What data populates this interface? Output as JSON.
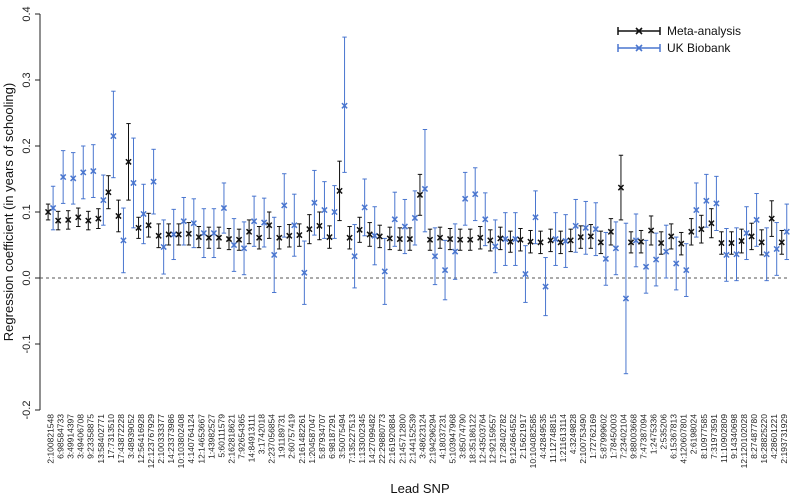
{
  "chart_data": {
    "type": "scatter",
    "title": "",
    "xlabel": "Lead SNP",
    "ylabel": "Regression coefficient (in years of schooling)",
    "ylim": [
      -0.2,
      0.4
    ],
    "yticks": [
      "-0.2",
      "-0.1",
      "0.0",
      "0.1",
      "0.2",
      "0.3",
      "0.4"
    ],
    "reference_line": 0,
    "grid": false,
    "legend_position": "top-right",
    "categories": [
      "2:100821548",
      "6:98584733",
      "3:49914397",
      "3:49406708",
      "9:23358875",
      "13:58402771",
      "17:7313510",
      "17:43872228",
      "3:48939052",
      "12:56416928",
      "12:123767929",
      "2:100333377",
      "14:23373986",
      "10:103802408",
      "4:140764124",
      "12:14653667",
      "1:43982527",
      "5:60111579",
      "2:162818621",
      "7:92654365",
      "14:84913111",
      "3:1742018",
      "2:237056854",
      "1:91189731",
      "2:60757419",
      "2:161482261",
      "1:204587047",
      "5:87934707",
      "6:98187291",
      "3:50075494",
      "7:135227513",
      "1:133002345",
      "14:27099482",
      "22:29880773",
      "2:161920884",
      "2:145712800",
      "2:144152539",
      "3:48623124",
      "2:194296294",
      "4:18037231",
      "5:103947968",
      "3:85074790",
      "18:35186122",
      "12:43503764",
      "12:92159557",
      "17:28402782",
      "9:124664552",
      "2:15621917",
      "10:104082585",
      "4:42849535",
      "11:12748815",
      "1:211613114",
      "4:3249828",
      "2:100753490",
      "1:72762169",
      "5:87999602",
      "1:78450003",
      "7:23402104",
      "9:88003668",
      "7:47387094",
      "1:2475336",
      "2:535206",
      "6:15367813",
      "4:120607801",
      "2:6198024",
      "8:10977585",
      "7:31973591",
      "11:10902809",
      "9:14340698",
      "12:120102028",
      "8:27487780",
      "16:28825220",
      "4:28601221",
      "2:193731929"
    ],
    "series": [
      {
        "name": "Meta-analysis",
        "color": "#111111",
        "marker": "x",
        "values": [
          0.1,
          0.087,
          0.088,
          0.092,
          0.087,
          0.09,
          0.13,
          0.094,
          0.176,
          0.076,
          0.08,
          0.064,
          0.066,
          0.066,
          0.067,
          0.062,
          0.061,
          0.061,
          0.059,
          0.058,
          0.07,
          0.061,
          0.08,
          0.061,
          0.064,
          0.065,
          0.074,
          0.079,
          0.062,
          0.132,
          0.061,
          0.073,
          0.066,
          0.063,
          0.06,
          0.059,
          0.059,
          0.126,
          0.058,
          0.061,
          0.059,
          0.058,
          0.058,
          0.061,
          0.057,
          0.06,
          0.055,
          0.058,
          0.055,
          0.054,
          0.057,
          0.054,
          0.057,
          0.062,
          0.063,
          0.054,
          0.07,
          0.137,
          0.054,
          0.055,
          0.072,
          0.053,
          0.063,
          0.052,
          0.07,
          0.074,
          0.083,
          0.053,
          0.053,
          0.056,
          0.063,
          0.054,
          0.09,
          0.054
        ],
        "ci_low": [
          0.088,
          0.073,
          0.074,
          0.078,
          0.073,
          0.075,
          0.105,
          0.07,
          0.118,
          0.06,
          0.062,
          0.046,
          0.05,
          0.05,
          0.05,
          0.046,
          0.045,
          0.045,
          0.043,
          0.042,
          0.052,
          0.044,
          0.06,
          0.044,
          0.047,
          0.048,
          0.052,
          0.058,
          0.045,
          0.087,
          0.044,
          0.054,
          0.048,
          0.046,
          0.043,
          0.042,
          0.042,
          0.095,
          0.042,
          0.045,
          0.043,
          0.042,
          0.042,
          0.044,
          0.041,
          0.043,
          0.039,
          0.041,
          0.038,
          0.037,
          0.04,
          0.037,
          0.04,
          0.045,
          0.045,
          0.037,
          0.05,
          0.088,
          0.038,
          0.038,
          0.05,
          0.036,
          0.044,
          0.035,
          0.05,
          0.053,
          0.061,
          0.036,
          0.036,
          0.038,
          0.043,
          0.035,
          0.063,
          0.036
        ],
        "ci_high": [
          0.112,
          0.101,
          0.102,
          0.106,
          0.101,
          0.105,
          0.155,
          0.118,
          0.234,
          0.092,
          0.098,
          0.082,
          0.082,
          0.082,
          0.084,
          0.078,
          0.077,
          0.077,
          0.075,
          0.074,
          0.088,
          0.078,
          0.1,
          0.078,
          0.081,
          0.082,
          0.096,
          0.1,
          0.079,
          0.177,
          0.078,
          0.092,
          0.084,
          0.08,
          0.077,
          0.076,
          0.076,
          0.157,
          0.074,
          0.077,
          0.075,
          0.074,
          0.074,
          0.078,
          0.073,
          0.077,
          0.071,
          0.075,
          0.072,
          0.071,
          0.074,
          0.071,
          0.074,
          0.079,
          0.081,
          0.071,
          0.09,
          0.186,
          0.07,
          0.072,
          0.094,
          0.07,
          0.082,
          0.069,
          0.09,
          0.095,
          0.105,
          0.07,
          0.07,
          0.074,
          0.083,
          0.073,
          0.117,
          0.072
        ]
      },
      {
        "name": "UK Biobank",
        "color": "#4a76cf",
        "marker": "x",
        "values": [
          0.106,
          0.153,
          0.151,
          0.16,
          0.162,
          0.118,
          0.215,
          0.057,
          0.144,
          0.097,
          0.146,
          0.047,
          0.066,
          0.086,
          0.083,
          0.068,
          0.068,
          0.106,
          0.05,
          0.045,
          0.086,
          0.084,
          0.035,
          0.11,
          0.08,
          0.008,
          0.114,
          0.103,
          0.1,
          0.261,
          0.033,
          0.107,
          0.064,
          0.01,
          0.089,
          0.078,
          0.091,
          0.135,
          0.033,
          0.012,
          0.04,
          0.12,
          0.127,
          0.089,
          0.048,
          0.059,
          0.059,
          0.006,
          0.092,
          -0.013,
          0.059,
          0.056,
          0.079,
          0.076,
          0.074,
          0.029,
          0.045,
          -0.031,
          0.057,
          0.017,
          0.028,
          0.04,
          0.022,
          0.012,
          0.103,
          0.117,
          0.113,
          0.035,
          0.036,
          0.068,
          0.088,
          0.036,
          0.044,
          0.07
        ],
        "ci_low": [
          0.073,
          0.113,
          0.112,
          0.12,
          0.122,
          0.08,
          0.152,
          0.008,
          0.076,
          0.052,
          0.097,
          0.006,
          0.028,
          0.05,
          0.046,
          0.031,
          0.031,
          0.068,
          0.01,
          0.005,
          0.048,
          0.047,
          -0.022,
          0.062,
          0.033,
          -0.04,
          0.065,
          0.06,
          0.06,
          0.16,
          -0.015,
          0.064,
          0.02,
          -0.04,
          0.048,
          0.037,
          0.05,
          0.07,
          -0.01,
          -0.033,
          -0.002,
          0.08,
          0.087,
          0.049,
          0.008,
          0.019,
          0.019,
          -0.037,
          0.052,
          -0.057,
          0.019,
          0.016,
          0.039,
          0.036,
          0.034,
          -0.011,
          0.005,
          -0.145,
          0.017,
          -0.023,
          -0.012,
          0.0,
          -0.018,
          -0.028,
          0.062,
          0.077,
          0.072,
          -0.005,
          -0.004,
          0.028,
          0.048,
          -0.004,
          0.004,
          0.028
        ],
        "ci_high": [
          0.139,
          0.193,
          0.19,
          0.2,
          0.202,
          0.156,
          0.283,
          0.106,
          0.212,
          0.142,
          0.195,
          0.088,
          0.104,
          0.122,
          0.12,
          0.105,
          0.105,
          0.144,
          0.09,
          0.085,
          0.124,
          0.121,
          0.092,
          0.158,
          0.127,
          0.056,
          0.163,
          0.146,
          0.14,
          0.365,
          0.081,
          0.15,
          0.108,
          0.06,
          0.13,
          0.119,
          0.132,
          0.225,
          0.076,
          0.057,
          0.082,
          0.16,
          0.167,
          0.129,
          0.088,
          0.099,
          0.099,
          0.049,
          0.132,
          0.031,
          0.099,
          0.096,
          0.119,
          0.116,
          0.114,
          0.069,
          0.085,
          0.083,
          0.097,
          0.057,
          0.068,
          0.08,
          0.062,
          0.052,
          0.144,
          0.157,
          0.154,
          0.075,
          0.076,
          0.108,
          0.128,
          0.076,
          0.084,
          0.112
        ]
      }
    ]
  }
}
